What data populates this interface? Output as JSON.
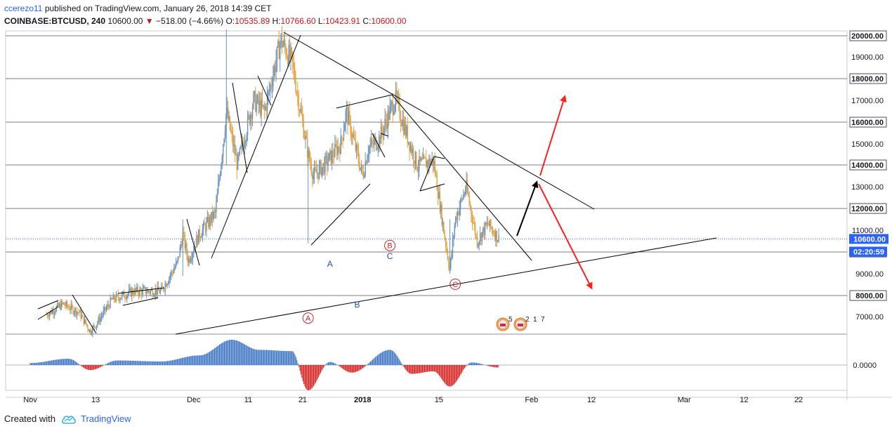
{
  "header": {
    "author": "ccerezo11",
    "published_text": "published on TradingView.com, January 26, 2018 14:39 CET",
    "symbol": "COINBASE:BTCUSD, 240",
    "last": "10600.00",
    "change": "−518.00 (−4.66%)",
    "open_label": "O:",
    "open": "10535.89",
    "high_label": "H:",
    "high": "10766.60",
    "low_label": "L:",
    "low": "10423.91",
    "close_label": "C:",
    "close": "10600.00"
  },
  "footer": {
    "created_with": "Created with",
    "brand": "TradingView"
  },
  "colors": {
    "up": "#6a93c0",
    "down": "#e3a13a",
    "histogram_pos": "#3d74c2",
    "histogram_neg": "#d41e1e",
    "price_line": "#2962ff",
    "red_arrow": "#ff1f1f"
  },
  "chart_data": {
    "type": "candlestick",
    "symbol": "COINBASE:BTCUSD",
    "interval": "240",
    "y_axis": {
      "ticks": [
        "20000.00",
        "19000.00",
        "18000.00",
        "17000.00",
        "16000.00",
        "15000.00",
        "14000.00",
        "13000.00",
        "12000.00",
        "11000.00",
        "10000.00",
        "9000.00",
        "8000.00",
        "7000.00"
      ],
      "boxed_ticks": [
        "20000.00",
        "18000.00",
        "16000.00",
        "14000.00",
        "12000.00",
        "10000.00",
        "8000.00"
      ],
      "ylim": [
        6600,
        20500
      ]
    },
    "last_price_label": "10600.00",
    "countdown_label": "02:20:59",
    "x_axis": {
      "ticks": [
        "Nov",
        "13",
        "Dec",
        "11",
        "21",
        "2018",
        "15",
        "Feb",
        "12",
        "Mar",
        "12",
        "22"
      ]
    },
    "price_path": [
      [
        "Nov 4",
        7100
      ],
      [
        "Nov 7",
        7600
      ],
      [
        "Nov 8",
        7450
      ],
      [
        "Nov 10",
        7200
      ],
      [
        "Nov 12",
        6300
      ],
      [
        "Nov 13",
        6600
      ],
      [
        "Nov 16",
        7800
      ],
      [
        "Nov 20",
        8200
      ],
      [
        "Nov 25",
        8200
      ],
      [
        "Nov 28",
        9500
      ],
      [
        "Nov 29",
        10800
      ],
      [
        "Nov 30",
        9600
      ],
      [
        "Dec 2",
        10800
      ],
      [
        "Dec 5",
        11800
      ],
      [
        "Dec 7",
        16500
      ],
      [
        "Dec 9",
        14000
      ],
      [
        "Dec 12",
        17000
      ],
      [
        "Dec 14",
        16500
      ],
      [
        "Dec 17",
        19800
      ],
      [
        "Dec 19",
        18800
      ],
      [
        "Dec 22",
        14500
      ],
      [
        "Dec 23",
        13500
      ],
      [
        "Dec 25",
        14000
      ],
      [
        "Dec 28",
        15000
      ],
      [
        "Dec 29",
        16500
      ],
      [
        "Jan 1",
        13500
      ],
      [
        "Jan 2",
        14800
      ],
      [
        "Jan 4",
        15200
      ],
      [
        "Jan 7",
        17100
      ],
      [
        "Jan 9",
        15500
      ],
      [
        "Jan 11",
        14000
      ],
      [
        "Jan 14",
        14200
      ],
      [
        "Jan 16",
        10800
      ],
      [
        "Jan 17",
        9200
      ],
      [
        "Jan 18",
        11500
      ],
      [
        "Jan 20",
        13000
      ],
      [
        "Jan 22",
        10500
      ],
      [
        "Jan 24",
        11300
      ],
      [
        "Jan 26",
        10600
      ]
    ],
    "oscillator": {
      "zero_label": "0.0000",
      "segments": [
        [
          "Nov 1",
          0.08
        ],
        [
          "Nov 8",
          0.25
        ],
        [
          "Nov 12",
          -0.2
        ],
        [
          "Nov 17",
          0.18
        ],
        [
          "Nov 25",
          0.14
        ],
        [
          "Dec 2",
          0.38
        ],
        [
          "Dec 8",
          1.0
        ],
        [
          "Dec 13",
          0.6
        ],
        [
          "Dec 19",
          0.55
        ],
        [
          "Dec 22",
          -1.0
        ],
        [
          "Dec 26",
          0.12
        ],
        [
          "Dec 30",
          -0.3
        ],
        [
          "Jan 6",
          0.6
        ],
        [
          "Jan 10",
          -0.35
        ],
        [
          "Jan 14",
          -0.25
        ],
        [
          "Jan 17",
          -0.85
        ],
        [
          "Jan 21",
          0.1
        ],
        [
          "Jan 26",
          -0.1
        ]
      ]
    },
    "wave_labels": [
      {
        "text": "A",
        "circled": true,
        "date": "Dec 22",
        "value": 6930
      },
      {
        "text": "B",
        "circled": true,
        "date": "Jan 6",
        "value": 10300
      },
      {
        "text": "C",
        "circled": true,
        "date": "Jan 18",
        "value": 8520
      },
      {
        "text": "A",
        "circled": false,
        "date": "Dec 26",
        "value": 9450
      },
      {
        "text": "B",
        "circled": false,
        "date": "Dec 31",
        "value": 7560
      },
      {
        "text": "C",
        "circled": false,
        "date": "Jan 6",
        "value": 9810
      }
    ],
    "event_badges": [
      "5",
      "2",
      "1",
      "7"
    ]
  }
}
